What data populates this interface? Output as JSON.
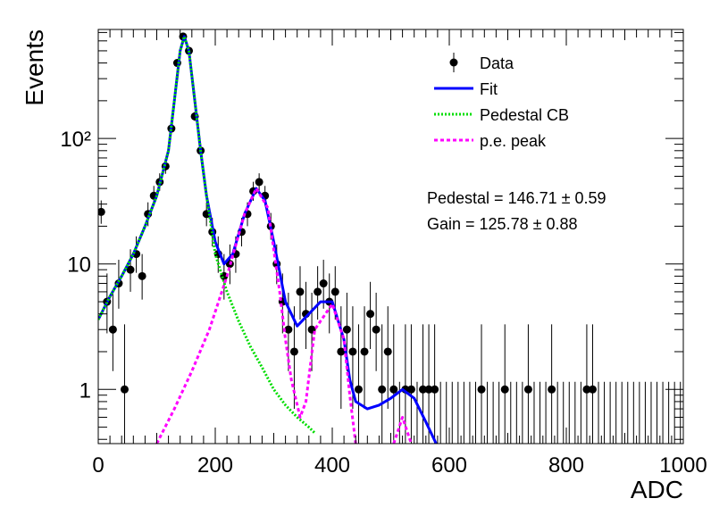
{
  "chart_data": {
    "type": "scatter",
    "xlabel": "ADC",
    "ylabel": "Events",
    "xlim": [
      0,
      1000
    ],
    "ylim": [
      0.37,
      740
    ],
    "log_y": true,
    "xticks": [
      0,
      200,
      400,
      600,
      800,
      1000
    ],
    "yticks": [
      1,
      10,
      {
        "value": 100,
        "label": "10²"
      }
    ],
    "legend": "upper right",
    "annotations": [
      "Pedestal = 146.71 ± 0.59",
      "Gain = 125.78 ± 0.88"
    ],
    "series": [
      {
        "name": "Data",
        "color": "#000000",
        "kind": "errorbar",
        "x": [
          5,
          15,
          25,
          35,
          45,
          55,
          65,
          75,
          85,
          95,
          105,
          115,
          125,
          135,
          145,
          155,
          165,
          175,
          185,
          195,
          205,
          215,
          225,
          235,
          245,
          255,
          265,
          275,
          285,
          295,
          305,
          315,
          325,
          335,
          345,
          355,
          365,
          375,
          385,
          395,
          405,
          415,
          425,
          435,
          445,
          455,
          465,
          475,
          485,
          495,
          505,
          515,
          525,
          535,
          545,
          555,
          565,
          575,
          585,
          595,
          605,
          615,
          625,
          635,
          645,
          655,
          665,
          675,
          685,
          695,
          705,
          715,
          725,
          735,
          745,
          755,
          765,
          775,
          785,
          795,
          805,
          815,
          825,
          835,
          845,
          855,
          865,
          875,
          885,
          895,
          905,
          915,
          925,
          935,
          945,
          955,
          965,
          975,
          985,
          995
        ],
        "values": [
          26,
          5,
          3,
          7,
          1,
          9,
          12,
          8,
          25,
          35,
          45,
          60,
          120,
          400,
          650,
          500,
          150,
          80,
          25,
          18,
          12,
          8,
          10,
          12,
          18,
          25,
          38,
          45,
          35,
          20,
          10,
          5,
          3,
          2,
          6,
          4,
          3,
          6,
          7,
          5,
          6,
          2,
          3,
          2,
          1,
          2,
          4,
          3,
          1,
          2,
          1,
          0,
          1,
          1,
          0,
          1,
          1,
          1,
          0,
          0,
          0,
          0,
          0,
          0,
          0,
          1,
          0,
          0,
          0,
          1,
          0,
          0,
          0,
          1,
          0,
          0,
          0,
          1,
          0,
          0,
          0,
          0,
          0,
          1,
          1,
          0,
          0,
          0,
          0,
          0,
          0,
          0,
          0,
          0,
          0,
          0,
          0,
          0,
          0,
          0
        ],
        "errors_low": [
          5.1,
          2.2,
          1.6,
          2.6,
          0.83,
          3.0,
          3.5,
          2.8,
          5.0,
          5.9,
          6.7,
          7.7,
          11.0,
          20,
          25.5,
          22.4,
          12.2,
          8.9,
          5.0,
          4.2,
          3.5,
          2.8,
          3.1,
          3.5,
          4.2,
          5.0,
          6.1,
          6.7,
          5.9,
          4.4,
          3.1,
          2.2,
          1.6,
          1.3,
          2.4,
          1.9,
          1.6,
          2.4,
          2.6,
          2.2,
          2.4,
          1.3,
          1.6,
          1.3,
          0.83,
          1.3,
          1.9,
          1.6,
          0.83,
          1.3,
          0.83,
          0,
          0.83,
          0.83,
          0,
          0.83,
          0.83,
          0.83,
          0,
          0,
          0,
          0,
          0,
          0,
          0,
          0.83,
          0,
          0,
          0,
          0.83,
          0,
          0,
          0,
          0.83,
          0,
          0,
          0,
          0.83,
          0,
          0,
          0,
          0,
          0,
          0.83,
          0.83,
          0,
          0,
          0,
          0,
          0,
          0,
          0,
          0,
          0,
          0,
          0,
          0,
          0,
          0,
          0
        ],
        "errors_high": [
          6.1,
          3.4,
          2.9,
          3.8,
          2.3,
          4.1,
          4.6,
          4.0,
          6.0,
          6.9,
          7.8,
          8.8,
          12.0,
          21,
          26.5,
          23.4,
          13.3,
          10.0,
          6.0,
          5.3,
          4.6,
          4.0,
          4.3,
          4.6,
          5.3,
          6.0,
          7.2,
          7.8,
          6.9,
          5.5,
          4.3,
          3.4,
          2.9,
          2.6,
          3.6,
          3.2,
          2.9,
          3.6,
          3.8,
          3.4,
          3.6,
          2.6,
          2.9,
          2.6,
          2.3,
          2.6,
          3.2,
          2.9,
          2.3,
          2.6,
          2.3,
          1.15,
          2.3,
          2.3,
          1.15,
          2.3,
          2.3,
          2.3,
          1.15,
          1.15,
          1.15,
          1.15,
          1.15,
          1.15,
          1.15,
          2.3,
          1.15,
          1.15,
          1.15,
          2.3,
          1.15,
          1.15,
          1.15,
          2.3,
          1.15,
          1.15,
          1.15,
          2.3,
          1.15,
          1.15,
          1.15,
          1.15,
          1.15,
          2.3,
          2.3,
          1.15,
          1.15,
          1.15,
          1.15,
          1.15,
          1.15,
          1.15,
          1.15,
          1.15,
          1.15,
          1.15,
          1.15,
          1.15,
          1.15,
          1.15
        ]
      },
      {
        "name": "Fit",
        "color": "#0000ff",
        "kind": "solid",
        "x": [
          0,
          20,
          40,
          60,
          80,
          100,
          120,
          130,
          140,
          147,
          155,
          165,
          175,
          185,
          200,
          215,
          230,
          250,
          270,
          285,
          300,
          320,
          340,
          360,
          380,
          400,
          420,
          430,
          440,
          460,
          480,
          500,
          520,
          540,
          560,
          580
        ],
        "values": [
          3.6,
          5.5,
          8,
          12,
          20,
          35,
          80,
          200,
          500,
          650,
          500,
          200,
          80,
          35,
          15,
          10,
          12,
          25,
          40,
          32,
          15,
          5,
          3.2,
          4,
          5,
          5,
          2.5,
          1.2,
          0.8,
          0.7,
          0.75,
          0.85,
          1.0,
          0.85,
          0.55,
          0.35
        ]
      },
      {
        "name": "Pedestal CB",
        "color": "#00dd00",
        "kind": "dotted",
        "x": [
          0,
          20,
          40,
          60,
          80,
          100,
          120,
          130,
          140,
          147,
          155,
          165,
          175,
          185,
          200,
          220,
          240,
          260,
          280,
          300,
          320,
          340,
          360,
          370
        ],
        "values": [
          3.6,
          5.5,
          8,
          12,
          20,
          35,
          80,
          200,
          500,
          650,
          500,
          200,
          80,
          35,
          12,
          6,
          3.5,
          2.2,
          1.5,
          1.0,
          0.75,
          0.6,
          0.5,
          0.45
        ]
      },
      {
        "name": "p.e. peak",
        "color": "#ff00ff",
        "kind": "dashed",
        "x": [
          100,
          130,
          160,
          190,
          220,
          250,
          270,
          290,
          310,
          320,
          330,
          345,
          355,
          370,
          400,
          420,
          430,
          440,
          470,
          505,
          520,
          535
        ],
        "values": [
          0.37,
          0.7,
          1.4,
          3,
          8,
          25,
          40,
          28,
          6,
          2.5,
          1.2,
          0.6,
          0.8,
          3,
          4.8,
          2.5,
          0.9,
          0.37,
          null,
          0.37,
          0.6,
          0.37
        ]
      }
    ]
  }
}
